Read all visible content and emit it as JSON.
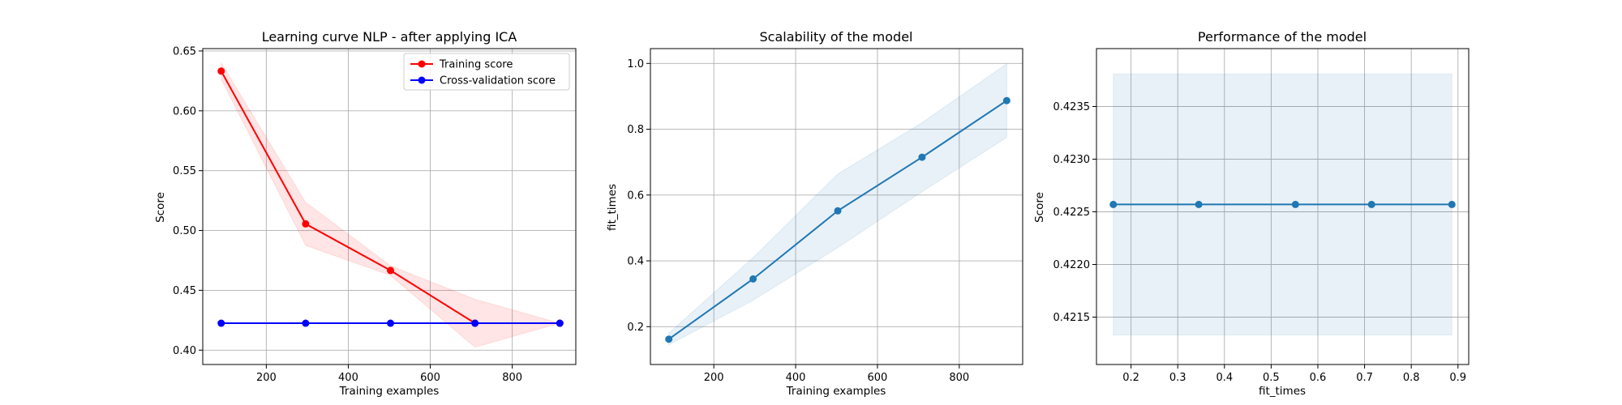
{
  "chart_data": [
    {
      "type": "line",
      "title": "Learning curve NLP - after applying ICA",
      "xlabel": "Training examples",
      "ylabel": "Score",
      "xlim": [
        45,
        955
      ],
      "ylim": [
        0.388,
        0.652
      ],
      "xticks": [
        200,
        400,
        600,
        800
      ],
      "xtick_labels": [
        "200",
        "400",
        "600",
        "800"
      ],
      "yticks": [
        0.4,
        0.45,
        0.5,
        0.55,
        0.6,
        0.65
      ],
      "ytick_labels": [
        "0.40",
        "0.45",
        "0.50",
        "0.55",
        "0.60",
        "0.65"
      ],
      "grid": true,
      "legend": "top-right",
      "x": [
        90,
        296,
        503,
        709,
        916
      ],
      "series": [
        {
          "name": "Training score",
          "color": "#ff0000",
          "values": [
            0.6332,
            0.5055,
            0.4666,
            0.4225,
            0.4225
          ],
          "band_lower": [
            0.6265,
            0.4875,
            0.4625,
            0.4025,
            0.4225
          ],
          "band_upper": [
            0.64,
            0.5235,
            0.4705,
            0.4425,
            0.4225
          ],
          "band_color": "#ff0000"
        },
        {
          "name": "Cross-validation score",
          "color": "#0000ff",
          "values": [
            0.4225,
            0.4225,
            0.4225,
            0.4225,
            0.4225
          ]
        }
      ]
    },
    {
      "type": "line",
      "title": "Scalability of the model",
      "xlabel": "Training examples",
      "ylabel": "fit_times",
      "xlim": [
        45,
        955
      ],
      "ylim": [
        0.085,
        1.045
      ],
      "xticks": [
        200,
        400,
        600,
        800
      ],
      "xtick_labels": [
        "200",
        "400",
        "600",
        "800"
      ],
      "yticks": [
        0.2,
        0.4,
        0.6,
        0.8,
        1.0
      ],
      "ytick_labels": [
        "0.2",
        "0.4",
        "0.6",
        "0.8",
        "1.0"
      ],
      "grid": true,
      "x": [
        90,
        296,
        503,
        709,
        916
      ],
      "series": [
        {
          "color": "#1f77b4",
          "values": [
            0.162,
            0.345,
            0.552,
            0.715,
            0.887
          ],
          "band_lower": [
            0.145,
            0.28,
            0.44,
            0.61,
            0.775
          ],
          "band_upper": [
            0.18,
            0.41,
            0.664,
            0.82,
            0.999
          ],
          "band_color": "#1f77b4"
        }
      ]
    },
    {
      "type": "line",
      "title": "Performance of the model",
      "xlabel": "fit_times",
      "ylabel": "Score",
      "xlim": [
        0.126,
        0.923
      ],
      "ylim": [
        0.42105,
        0.42405
      ],
      "xticks": [
        0.2,
        0.3,
        0.4,
        0.5,
        0.6,
        0.7,
        0.8,
        0.9
      ],
      "xtick_labels": [
        "0.2",
        "0.3",
        "0.4",
        "0.5",
        "0.6",
        "0.7",
        "0.8",
        "0.9"
      ],
      "yticks": [
        0.4215,
        0.422,
        0.4225,
        0.423,
        0.4235
      ],
      "ytick_labels": [
        "0.4215",
        "0.4220",
        "0.4225",
        "0.4230",
        "0.4235"
      ],
      "grid": true,
      "x": [
        0.162,
        0.345,
        0.552,
        0.715,
        0.887
      ],
      "series": [
        {
          "color": "#1f77b4",
          "values": [
            0.42257,
            0.42257,
            0.42257,
            0.42257,
            0.42257
          ],
          "band_lower": [
            0.42133,
            0.42133,
            0.42133,
            0.42133,
            0.42133
          ],
          "band_upper": [
            0.42381,
            0.42381,
            0.42381,
            0.42381,
            0.42381
          ],
          "band_color": "#1f77b4"
        }
      ]
    }
  ]
}
